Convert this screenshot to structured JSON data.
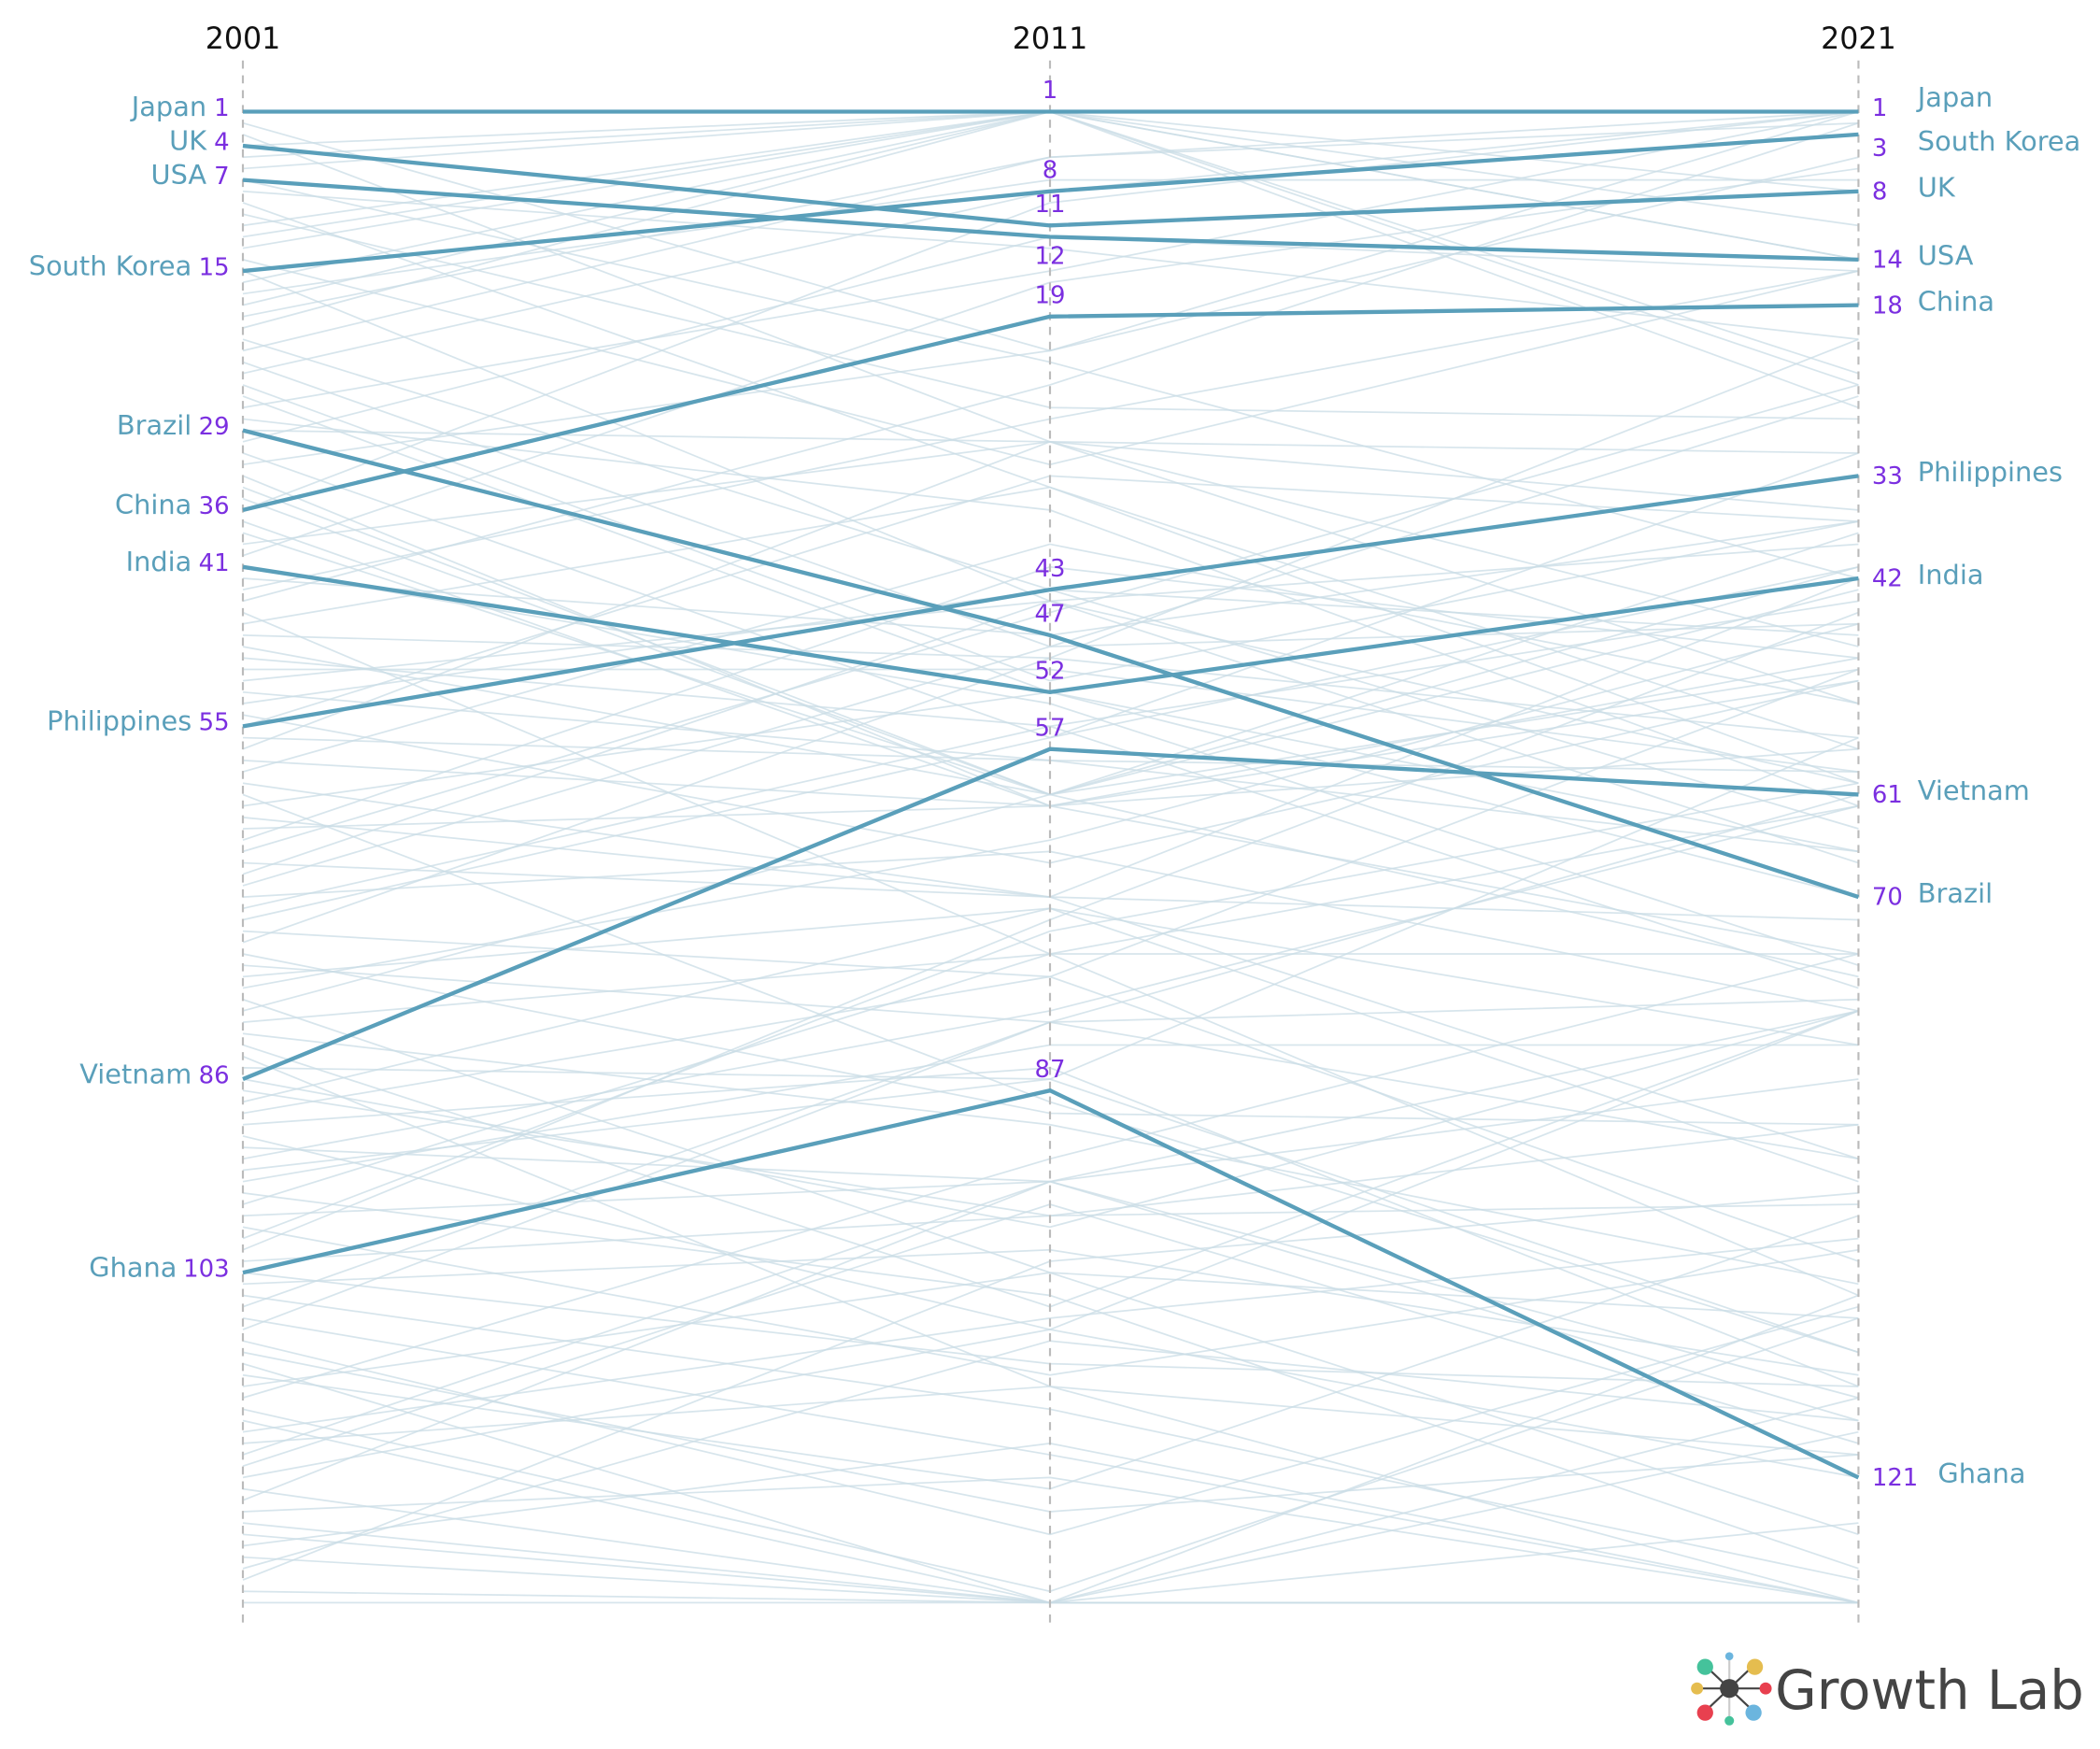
{
  "chart_data": {
    "type": "slope",
    "title": "",
    "x": [
      "2001",
      "2011",
      "2021"
    ],
    "y_scale": "rank (1 = top, inverted)",
    "highlight_color": "#5a9fba",
    "background_line_color": "#c9dce6",
    "rank_label_color": "#7b2fe0",
    "series": [
      {
        "name": "Japan",
        "values": [
          1,
          1,
          1
        ]
      },
      {
        "name": "UK",
        "values": [
          4,
          11,
          8
        ]
      },
      {
        "name": "USA",
        "values": [
          7,
          12,
          14
        ]
      },
      {
        "name": "South Korea",
        "values": [
          15,
          8,
          3
        ]
      },
      {
        "name": "Brazil",
        "values": [
          29,
          47,
          70
        ]
      },
      {
        "name": "China",
        "values": [
          36,
          19,
          18
        ]
      },
      {
        "name": "India",
        "values": [
          41,
          52,
          42
        ]
      },
      {
        "name": "Philippines",
        "values": [
          55,
          43,
          33
        ]
      },
      {
        "name": "Vietnam",
        "values": [
          86,
          57,
          61
        ]
      },
      {
        "name": "Ghana",
        "values": [
          103,
          87,
          121
        ]
      }
    ]
  },
  "logo": {
    "text": "Growth Lab"
  }
}
